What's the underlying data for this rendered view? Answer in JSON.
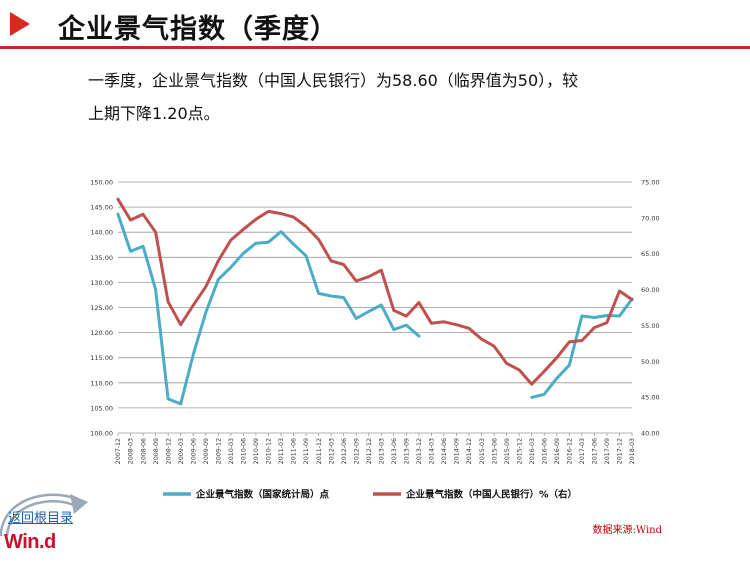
{
  "header": {
    "title": "企业景气指数（季度）"
  },
  "summary": {
    "line1": "一季度，企业景气指数（中国人民银行）为58.60（临界值为50），较",
    "line2": "上期下降1.20点。"
  },
  "colors": {
    "accent_red": "#c0282a",
    "series_nbs": "#4bacc6",
    "series_pboc": "#c0504d",
    "grid": "#9a9a9a"
  },
  "chart_data": {
    "type": "line",
    "title": "",
    "xlabel": "",
    "ylabel": "",
    "ylim_left": [
      100,
      150
    ],
    "ylim_right": [
      40,
      75
    ],
    "left_ticks": [
      "150.00",
      "145.00",
      "140.00",
      "135.00",
      "130.00",
      "125.00",
      "120.00",
      "115.00",
      "110.00",
      "105.00",
      "100.00"
    ],
    "right_ticks": [
      "75.00",
      "70.00",
      "65.00",
      "60.00",
      "55.00",
      "50.00",
      "45.00",
      "40.00"
    ],
    "grid": true,
    "legend_position": "bottom",
    "categories": [
      "2007-12",
      "2008-03",
      "2008-06",
      "2008-09",
      "2008-12",
      "2009-03",
      "2009-06",
      "2009-09",
      "2009-12",
      "2010-03",
      "2010-06",
      "2010-09",
      "2010-12",
      "2011-03",
      "2011-06",
      "2011-09",
      "2011-12",
      "2012-03",
      "2012-06",
      "2012-09",
      "2012-12",
      "2013-03",
      "2013-06",
      "2013-09",
      "2013-12",
      "2014-03",
      "2014-06",
      "2014-09",
      "2014-12",
      "2015-03",
      "2015-06",
      "2015-09",
      "2015-12",
      "2016-03",
      "2016-06",
      "2016-09",
      "2016-12",
      "2017-03",
      "2017-06",
      "2017-09",
      "2017-12",
      "2018-03"
    ],
    "series": [
      {
        "name": "企业景气指数（国家统计局）点",
        "axis": "left",
        "color": "#4bacc6",
        "values": [
          143.6,
          136.2,
          137.2,
          128.6,
          106.8,
          105.8,
          115.6,
          124.0,
          130.6,
          133.0,
          135.8,
          137.8,
          138.0,
          140.1,
          137.6,
          135.3,
          127.8,
          127.3,
          127.0,
          122.8,
          124.2,
          125.5,
          120.6,
          121.5,
          119.3,
          null,
          null,
          null,
          null,
          null,
          null,
          null,
          null,
          107.1,
          107.7,
          110.9,
          113.5,
          123.3,
          123.0,
          123.4,
          123.3,
          126.7
        ]
      },
      {
        "name": "企业景气指数（中国人民银行）%（右）",
        "axis": "right",
        "color": "#c0504d",
        "values": [
          72.6,
          69.7,
          70.5,
          68.0,
          58.3,
          55.1,
          57.8,
          60.4,
          64.0,
          66.9,
          68.4,
          69.8,
          70.9,
          70.6,
          70.1,
          68.8,
          67.0,
          64.0,
          63.5,
          61.2,
          61.8,
          62.7,
          57.1,
          56.3,
          58.2,
          55.3,
          55.5,
          55.1,
          54.6,
          53.1,
          52.1,
          49.7,
          48.8,
          46.8,
          48.6,
          50.5,
          52.7,
          52.9,
          54.7,
          55.4,
          59.8,
          58.6
        ]
      }
    ]
  },
  "source": {
    "text": "数据来源:Wind"
  },
  "nav": {
    "back_label": "返回根目录",
    "logo": "Win.d"
  }
}
